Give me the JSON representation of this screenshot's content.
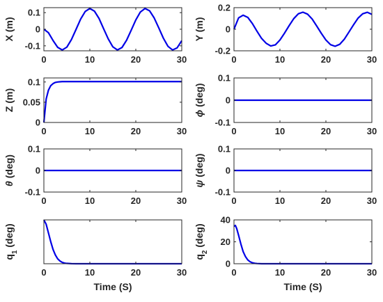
{
  "chart_data": [
    {
      "type": "line",
      "ylabel_parts": [
        {
          "t": "X (m)"
        }
      ],
      "xlim": [
        0,
        30
      ],
      "ylim": [
        -0.13,
        0.13
      ],
      "xticks": [
        0,
        10,
        20,
        30
      ],
      "yticks": [
        -0.1,
        0,
        0.1
      ],
      "xtick_labels": [
        "0",
        "10",
        "20",
        "30"
      ],
      "ytick_labels": [
        "-0.1",
        "0",
        "0.1"
      ],
      "xlabel": "",
      "grid": false,
      "x": [
        0,
        1,
        2,
        3,
        4,
        5,
        6,
        7,
        8,
        9,
        10,
        11,
        12,
        13,
        14,
        15,
        16,
        17,
        18,
        19,
        20,
        21,
        22,
        23,
        24,
        25,
        26,
        27,
        28,
        29,
        30
      ],
      "y": [
        0,
        -0.021,
        -0.068,
        -0.109,
        -0.125,
        -0.108,
        -0.062,
        -0.001,
        0.061,
        0.107,
        0.125,
        0.109,
        0.065,
        0.003,
        -0.058,
        -0.106,
        -0.125,
        -0.11,
        -0.066,
        -0.006,
        0.056,
        0.104,
        0.125,
        0.111,
        0.068,
        0.008,
        -0.054,
        -0.103,
        -0.125,
        -0.112,
        -0.069
      ]
    },
    {
      "type": "line",
      "ylabel_parts": [
        {
          "t": "Y (m)"
        }
      ],
      "xlim": [
        0,
        30
      ],
      "ylim": [
        -0.2,
        0.2
      ],
      "xticks": [
        0,
        10,
        20,
        30
      ],
      "yticks": [
        -0.2,
        0,
        0.2
      ],
      "xtick_labels": [
        "0",
        "10",
        "20",
        "30"
      ],
      "ytick_labels": [
        "-0.2",
        "0",
        "0.2"
      ],
      "xlabel": "",
      "grid": false,
      "x": [
        0,
        1,
        2,
        3,
        4,
        5,
        6,
        7,
        8,
        9,
        10,
        11,
        12,
        13,
        14,
        15,
        16,
        17,
        18,
        19,
        20,
        21,
        22,
        23,
        24,
        25,
        26,
        27,
        28,
        29,
        30
      ],
      "y": [
        0,
        0.105,
        0.13,
        0.11,
        0.053,
        -0.018,
        -0.085,
        -0.13,
        -0.155,
        -0.145,
        -0.1,
        -0.036,
        0.033,
        0.098,
        0.143,
        0.158,
        0.14,
        0.095,
        0.03,
        -0.038,
        -0.1,
        -0.143,
        -0.158,
        -0.14,
        -0.093,
        -0.027,
        0.04,
        0.103,
        0.143,
        0.157,
        0.138
      ]
    },
    {
      "type": "line",
      "ylabel_parts": [
        {
          "t": "Z (m)"
        }
      ],
      "xlim": [
        0,
        30
      ],
      "ylim": [
        0,
        0.11
      ],
      "xticks": [
        0,
        10,
        20,
        30
      ],
      "yticks": [
        0,
        0.05,
        0.1
      ],
      "xtick_labels": [
        "0",
        "10",
        "20",
        "30"
      ],
      "ytick_labels": [
        "0",
        "0.05",
        "0.1"
      ],
      "xlabel": "",
      "grid": false,
      "x": [
        0,
        0.5,
        1,
        1.5,
        2,
        2.5,
        3,
        3.5,
        4,
        5,
        6,
        8,
        10,
        15,
        20,
        25,
        30
      ],
      "y": [
        0,
        0.058,
        0.08,
        0.091,
        0.096,
        0.099,
        0.1,
        0.1005,
        0.101,
        0.101,
        0.101,
        0.101,
        0.101,
        0.101,
        0.101,
        0.101,
        0.101
      ]
    },
    {
      "type": "line",
      "ylabel_parts": [
        {
          "t": "ϕ",
          "i": true
        },
        {
          "t": " (deg)"
        }
      ],
      "xlim": [
        0,
        30
      ],
      "ylim": [
        -0.1,
        0.1
      ],
      "xticks": [
        0,
        10,
        20,
        30
      ],
      "yticks": [
        -0.1,
        0,
        0.1
      ],
      "xtick_labels": [
        "0",
        "10",
        "20",
        "30"
      ],
      "ytick_labels": [
        "-0.1",
        "0",
        "0.1"
      ],
      "xlabel": "",
      "grid": false,
      "x": [
        0,
        30
      ],
      "y": [
        0,
        0
      ]
    },
    {
      "type": "line",
      "ylabel_parts": [
        {
          "t": "θ",
          "i": true
        },
        {
          "t": " (deg)"
        }
      ],
      "xlim": [
        0,
        30
      ],
      "ylim": [
        -0.1,
        0.1
      ],
      "xticks": [
        0,
        10,
        20,
        30
      ],
      "yticks": [
        -0.1,
        0,
        0.1
      ],
      "xtick_labels": [
        "0",
        "10",
        "20",
        "30"
      ],
      "ytick_labels": [
        "-0.1",
        "0",
        "0.1"
      ],
      "xlabel": "",
      "grid": false,
      "x": [
        0,
        30
      ],
      "y": [
        0,
        0
      ]
    },
    {
      "type": "line",
      "ylabel_parts": [
        {
          "t": "ψ",
          "i": true
        },
        {
          "t": " (deg)"
        }
      ],
      "xlim": [
        0,
        30
      ],
      "ylim": [
        -0.1,
        0.1
      ],
      "xticks": [
        0,
        10,
        20,
        30
      ],
      "yticks": [
        -0.1,
        0,
        0.1
      ],
      "xtick_labels": [
        "0",
        "10",
        "20",
        "30"
      ],
      "ytick_labels": [
        "-0.1",
        "0",
        "0.1"
      ],
      "xlabel": "",
      "grid": false,
      "x": [
        0,
        30
      ],
      "y": [
        0,
        0
      ]
    },
    {
      "type": "line",
      "ylabel_parts": [
        {
          "t": "q"
        },
        {
          "t": "1",
          "sub": true
        },
        {
          "t": " (deg)"
        }
      ],
      "xlim": [
        0,
        30
      ],
      "ylim": [
        0,
        80
      ],
      "xticks": [
        0,
        10,
        20,
        30
      ],
      "yticks": [],
      "xtick_labels": [
        "0",
        "10",
        "20",
        "30"
      ],
      "ytick_labels": [],
      "xlabel": "Time (S)",
      "grid": false,
      "x": [
        0,
        0.5,
        1,
        1.5,
        2,
        2.5,
        3,
        3.5,
        4,
        4.5,
        5,
        6,
        7,
        8,
        10,
        15,
        20,
        25,
        30
      ],
      "y": [
        80,
        72,
        56,
        40,
        26,
        16,
        9,
        5,
        2.5,
        1.2,
        0.6,
        0.2,
        0,
        0,
        0,
        0,
        0,
        0,
        0
      ]
    },
    {
      "type": "line",
      "ylabel_parts": [
        {
          "t": "q"
        },
        {
          "t": "2",
          "sub": true
        },
        {
          "t": " (deg)"
        }
      ],
      "xlim": [
        0,
        30
      ],
      "ylim": [
        0,
        40
      ],
      "xticks": [
        0,
        10,
        20,
        30
      ],
      "yticks": [
        0,
        20,
        40
      ],
      "xtick_labels": [
        "0",
        "10",
        "20",
        "30"
      ],
      "ytick_labels": [
        "0",
        "20",
        "40"
      ],
      "xlabel": "Time (S)",
      "grid": false,
      "x": [
        0,
        0.3,
        0.6,
        1,
        1.5,
        2,
        2.5,
        3,
        3.5,
        4,
        4.5,
        5,
        6,
        7,
        8,
        10,
        15,
        20,
        25,
        30
      ],
      "y": [
        34,
        35,
        32,
        26,
        18,
        11,
        6.5,
        3.5,
        1.8,
        0.9,
        0.4,
        0.2,
        0,
        0,
        0,
        0,
        0,
        0,
        0,
        0
      ]
    }
  ]
}
